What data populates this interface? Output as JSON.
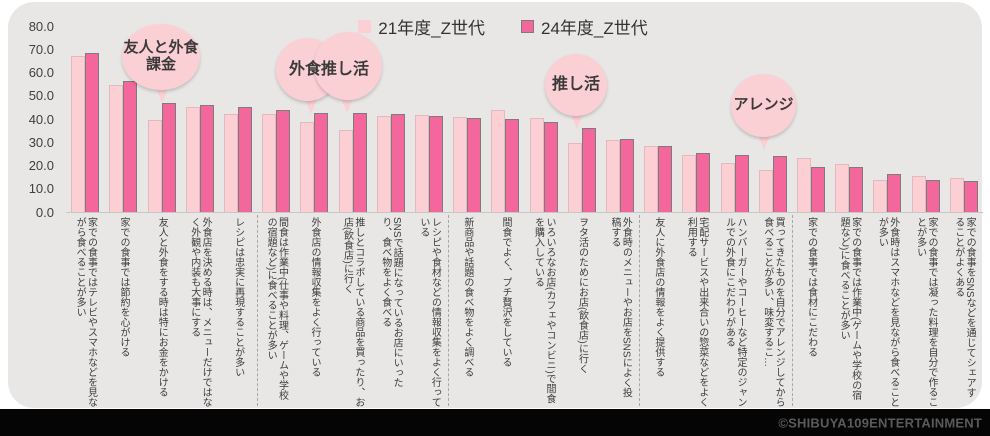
{
  "legend": {
    "items": [
      {
        "label": "21年度_Z世代",
        "color": "#fbcfd3"
      },
      {
        "label": "24年度_Z世代",
        "color": "#f4679c"
      }
    ]
  },
  "y_axis": {
    "ticks": [
      "80.0",
      "70.0",
      "60.0",
      "50.0",
      "40.0",
      "30.0",
      "20.0",
      "10.0",
      "0.0"
    ]
  },
  "callouts": [
    {
      "text": "友人と外食\n課金",
      "target_category_indices": [
        2
      ]
    },
    {
      "text": "外食推し活",
      "target_category_indices": [
        6,
        7
      ]
    },
    {
      "text": "推し活",
      "target_category_indices": [
        13
      ]
    },
    {
      "text": "アレンジ",
      "target_category_indices": [
        18
      ]
    }
  ],
  "watermark": "©SHIBUYA109ENTERTAINMENT",
  "colors": {
    "bar_21": "#fbcfd3",
    "bar_24": "#f4679c",
    "bar_24_border": "#7c7c7c",
    "card_bg": "#e8e7e6",
    "bubble": "#fbd0d5",
    "footer": "#050505"
  },
  "chart_data": {
    "type": "bar",
    "title": "",
    "ylabel": "",
    "xlabel": "",
    "ylim": [
      0,
      80
    ],
    "grid": false,
    "legend_position": "top-center",
    "categories": [
      "家での食事ではテレビやスマホなどを見ながら食べることが多い",
      "家での食事では節約を心がける",
      "友人と外食をする時は特にお金をかける",
      "外食店を決める時は、メニューだけではなく外観や内装も大事にする",
      "レシピは忠実に再現することが多い",
      "間食は作業中(仕事や料理、ゲームや学校の宿題など)に食べることが多い",
      "外食店の情報収集をよく行っている",
      "推しとコラボしている商品を買ったり、お店(飲食店)に行く",
      "SNSで話題になっているお店にいったり、食べ物をよく食べる",
      "レシピや食材などの情報収集をよく行っている",
      "新商品や話題の食べ物をよく調べる",
      "間食でよく、プチ贅沢をしている",
      "いろいろなお店(カフェやコンビニ)で間食を購入している",
      "ヲタ活のためにお店(飲食店)に行く",
      "外食時のメニューやお店をSNSによく投稿する",
      "友人に外食店の情報をよく提供する",
      "宅配サービスや出来合いの惣菜などをよく利用する",
      "ハンバーガーやコーヒーなど特定のジャンルでの外食にこだわりがある",
      "買ってきたものを自分でアレンジしてから食べることが多い、味変するこ…",
      "家での食事では食材にこだわる",
      "家での食事では作業中(ゲームや学校の宿題など)に食べることが多い",
      "外食時はスマホなどを見ながら食べることが多い",
      "家での食事では凝った料理を自分で作ることが多い",
      "家での食事をSNSなどを通じてシェアすることがよくある"
    ],
    "series": [
      {
        "name": "21年度_Z世代",
        "color": "#fbcfd3",
        "values": [
          67.0,
          54.5,
          39.8,
          45.1,
          42.0,
          42.2,
          38.8,
          35.4,
          41.3,
          41.6,
          40.9,
          43.7,
          40.4,
          29.5,
          30.9,
          28.2,
          24.6,
          21.3,
          17.9,
          23.2,
          20.5,
          14.0,
          15.5,
          14.8
        ]
      },
      {
        "name": "24年度_Z世代",
        "color": "#f4679c",
        "values": [
          68.3,
          56.2,
          46.9,
          45.9,
          45.3,
          43.7,
          42.8,
          42.5,
          42.0,
          41.3,
          40.4,
          40.0,
          38.9,
          36.0,
          31.4,
          28.6,
          25.2,
          24.6,
          24.3,
          19.5,
          19.4,
          16.5,
          13.8,
          13.5
        ]
      }
    ],
    "group_dividers_after": [
      5,
      10,
      15,
      19
    ]
  }
}
